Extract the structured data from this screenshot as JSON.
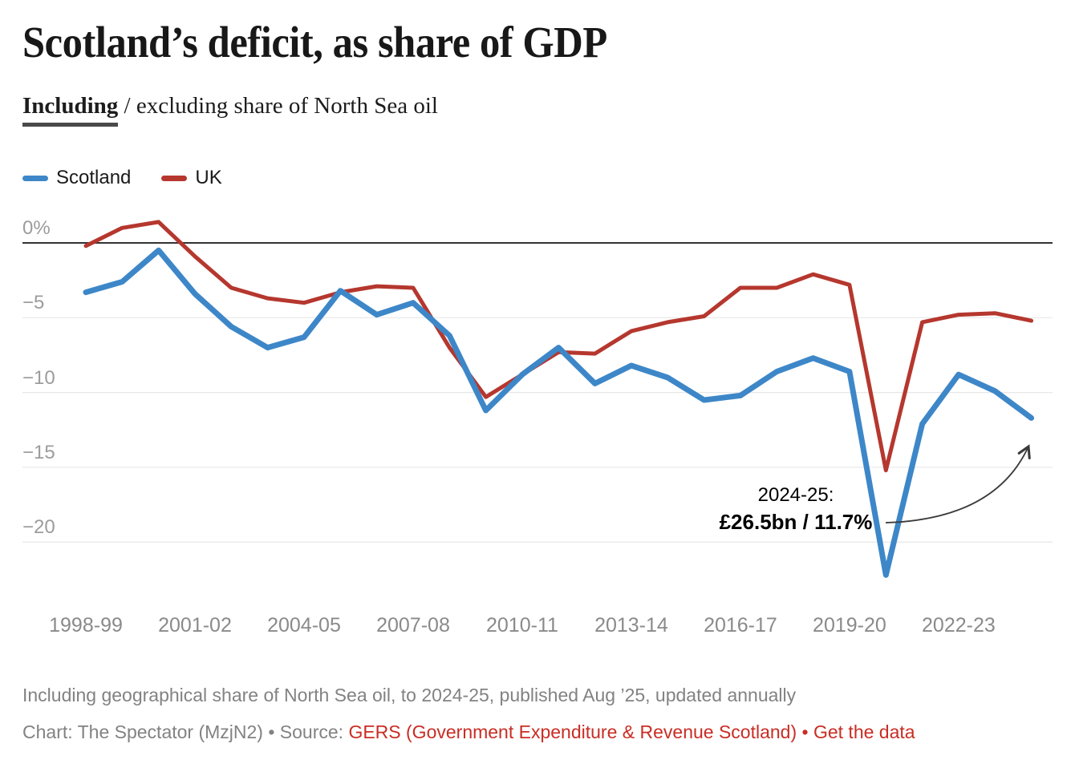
{
  "chart_data": {
    "type": "line",
    "title": "Scotland’s deficit, as share of GDP",
    "subtitle": "Including / excluding share of North Sea oil",
    "x": [
      "1998-99",
      "1999-00",
      "2000-01",
      "2001-02",
      "2002-03",
      "2003-04",
      "2004-05",
      "2005-06",
      "2006-07",
      "2007-08",
      "2008-09",
      "2009-10",
      "2010-11",
      "2011-12",
      "2012-13",
      "2013-14",
      "2014-15",
      "2015-16",
      "2016-17",
      "2017-18",
      "2018-19",
      "2019-20",
      "2020-21",
      "2021-22",
      "2022-23",
      "2023-24",
      "2024-25"
    ],
    "series": [
      {
        "name": "Scotland",
        "color": "#3d87c8",
        "values": [
          -3.3,
          -2.6,
          -0.5,
          -3.4,
          -5.6,
          -7.0,
          -6.3,
          -3.2,
          -4.8,
          -4.0,
          -6.2,
          -11.2,
          -8.8,
          -7.0,
          -9.4,
          -8.2,
          -9.0,
          -10.5,
          -10.2,
          -8.6,
          -7.7,
          -8.6,
          -22.2,
          -12.1,
          -8.8,
          -9.9,
          -11.7
        ]
      },
      {
        "name": "UK",
        "color": "#b5372e",
        "values": [
          -0.2,
          1.0,
          1.4,
          -0.9,
          -3.0,
          -3.7,
          -4.0,
          -3.3,
          -2.9,
          -3.0,
          -7.0,
          -10.3,
          -8.8,
          -7.3,
          -7.4,
          -5.9,
          -5.3,
          -4.9,
          -3.0,
          -3.0,
          -2.1,
          -2.8,
          -15.2,
          -5.3,
          -4.8,
          -4.7,
          -5.2
        ]
      }
    ],
    "ylabel": "",
    "xlabel": "",
    "ylim": [
      -23.5,
      1.8
    ],
    "baseline": 0,
    "yticks": [
      {
        "value": 0,
        "label": "0%"
      },
      {
        "value": -5,
        "label": "−5"
      },
      {
        "value": -10,
        "label": "−10"
      },
      {
        "value": -15,
        "label": "−15"
      },
      {
        "value": -20,
        "label": "−20"
      }
    ],
    "xticks": [
      0,
      3,
      6,
      9,
      12,
      15,
      18,
      21,
      24
    ],
    "grid": "horizontal",
    "legend_position": "top-left",
    "annotation": {
      "line1": "2024-25:",
      "line2": "£26.5bn / 11.7%",
      "points_to": "2024-25"
    }
  },
  "header": {
    "toggle_active": "Including",
    "toggle_separator": " / ",
    "toggle_inactive": "excluding share of North Sea oil"
  },
  "footer": {
    "note": "Including geographical share of North Sea oil, to 2024-25, published Aug ’25, updated annually",
    "credit_prefix": "Chart: The Spectator (MzjN2) • Source: ",
    "source_link": "GERS (Government Expenditure & Revenue Scotland)",
    "separator": " • ",
    "data_link": "Get the data"
  },
  "colors": {
    "scotland": "#3d87c8",
    "uk": "#b5372e",
    "baseline": "#333333",
    "grid": "#e8e8e8",
    "y_tick": "#9c9c9c",
    "x_tick": "#8a8a8a",
    "footnote": "#828282",
    "link": "#c92d24",
    "arrow": "#3a3a3a"
  }
}
